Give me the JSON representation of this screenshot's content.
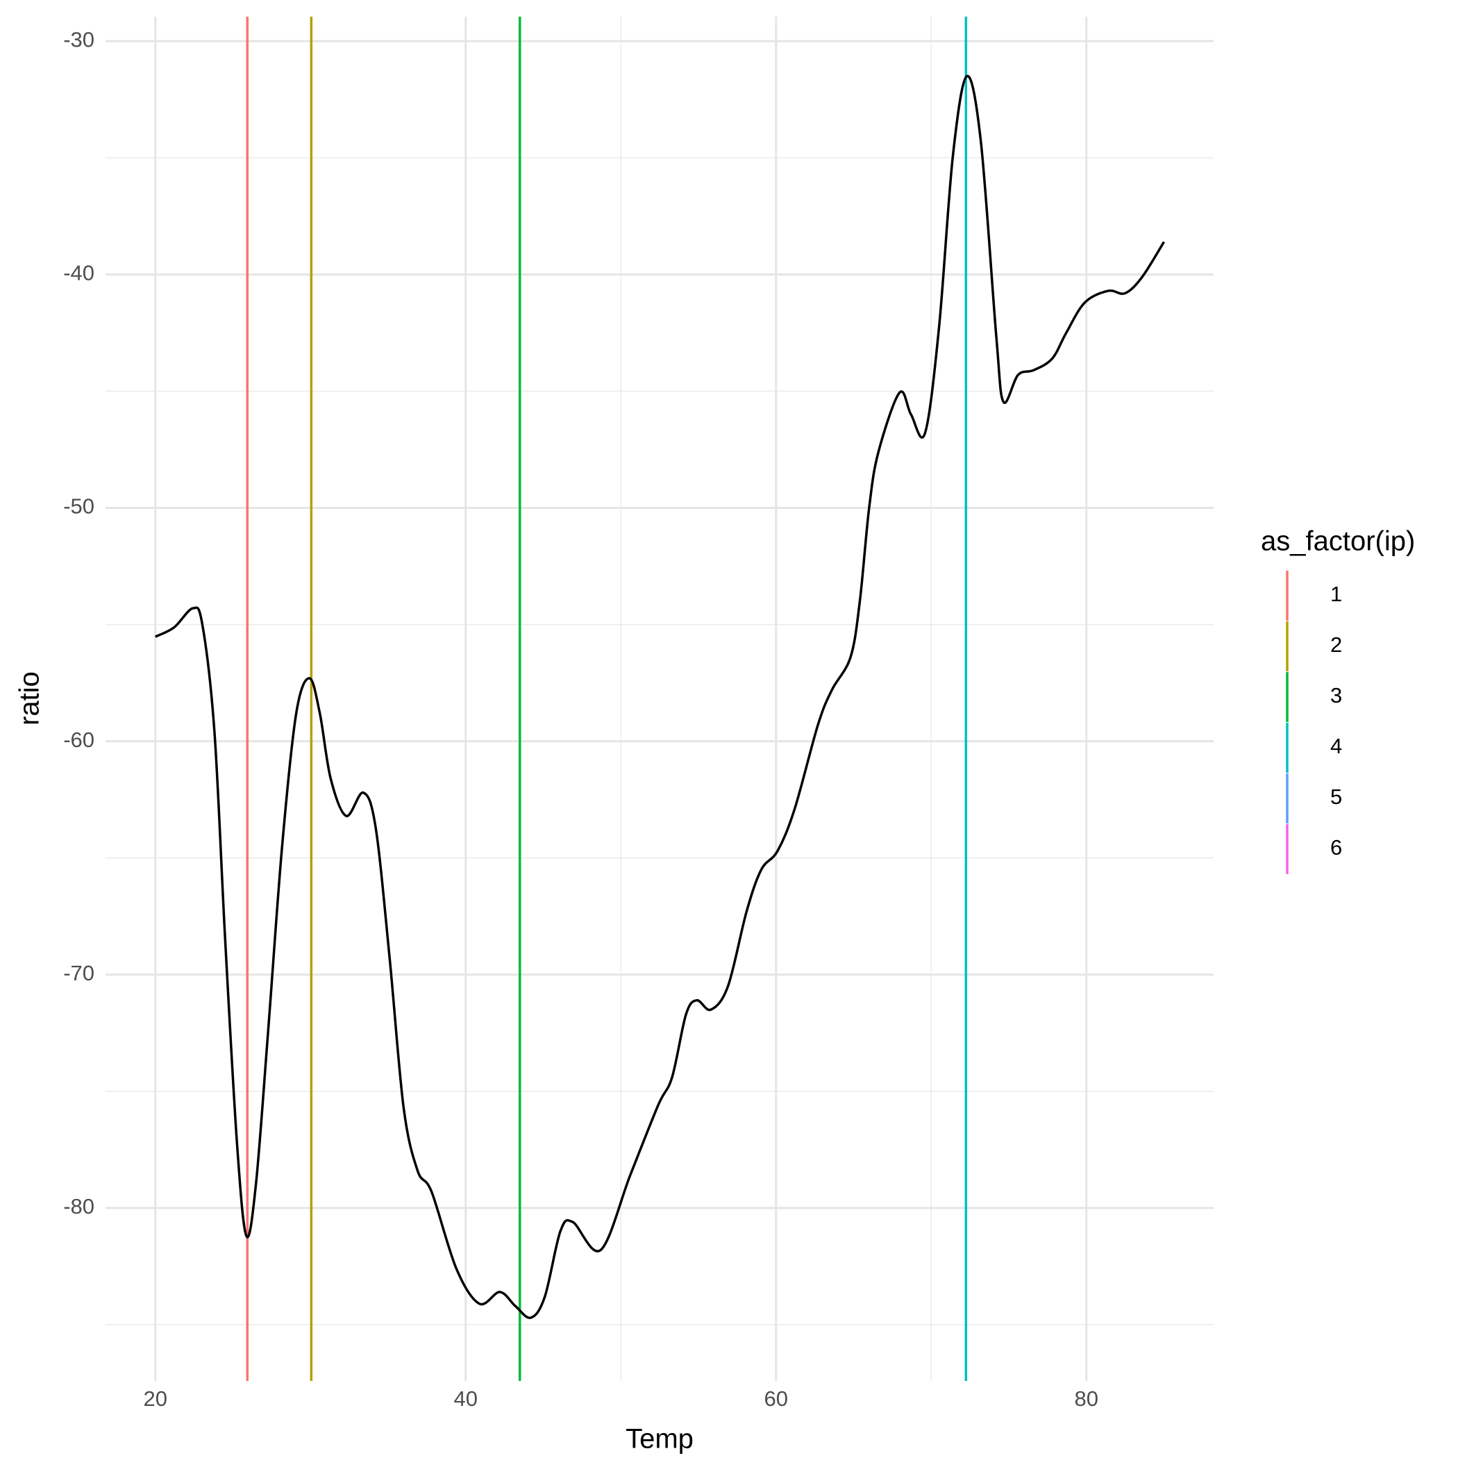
{
  "chart_data": {
    "type": "line",
    "x_label": "Temp",
    "y_label": "ratio",
    "xlim": [
      16.79,
      88.2
    ],
    "ylim": [
      -87.41,
      -28.95
    ],
    "xticks": [
      20,
      40,
      60,
      80
    ],
    "yticks": [
      -30,
      -40,
      -50,
      -60,
      -70,
      -80
    ],
    "xminorticks": [
      30,
      50,
      70
    ],
    "yminorticks": [
      -35,
      -45,
      -55,
      -65,
      -75,
      -85
    ],
    "grid": true,
    "series": [
      {
        "color": "#000000",
        "x": [
          20,
          21.21,
          22.42,
          23.03,
          23.81,
          24.5,
          25.27,
          25.87,
          26.48,
          27.26,
          28.17,
          29.08,
          29.93,
          30.6,
          31.3,
          32.3,
          33.4,
          34.2,
          35.1,
          36.0,
          36.9,
          37.8,
          39.4,
          40.88,
          42.2,
          43.2,
          44.2,
          45.1,
          46.1,
          46.9,
          48.7,
          50.6,
          52.4,
          53.3,
          54.2,
          54.9,
          55.8,
          56.9,
          58.1,
          59.05,
          60.1,
          61.2,
          62.7,
          63.6,
          64.8,
          65.4,
          66.0,
          66.6,
          67.96,
          68.7,
          69.6,
          70.5,
          71.4,
          72.3,
          73.2,
          74.2,
          74.66,
          75.6,
          76.6,
          77.8,
          78.7,
          79.9,
          81.4,
          82.5,
          83.6,
          85.0
        ],
        "values": [
          -55.52,
          -55.12,
          -54.3,
          -55.0,
          -59.6,
          -68.5,
          -77.3,
          -81.2,
          -79.0,
          -72.5,
          -64.5,
          -58.8,
          -57.3,
          -58.8,
          -61.6,
          -63.2,
          -62.2,
          -63.7,
          -69.3,
          -75.7,
          -78.4,
          -79.3,
          -82.6,
          -84.1,
          -83.6,
          -84.2,
          -84.7,
          -83.8,
          -81.0,
          -80.6,
          -81.8,
          -78.6,
          -75.6,
          -74.4,
          -71.7,
          -71.1,
          -71.5,
          -70.5,
          -67.3,
          -65.5,
          -64.7,
          -62.9,
          -59.3,
          -57.8,
          -56.4,
          -54.0,
          -50.0,
          -47.6,
          -45.06,
          -46.0,
          -46.8,
          -42.3,
          -34.9,
          -31.5,
          -34.3,
          -42.7,
          -45.46,
          -44.3,
          -44.1,
          -43.6,
          -42.5,
          -41.2,
          -40.7,
          -40.8,
          -40.1,
          -38.6
        ]
      }
    ],
    "legend_title": "as_factor(ip)",
    "legend": "right",
    "vlines": [
      {
        "name": "1",
        "color": "#F8766D",
        "x": 25.93
      },
      {
        "name": "2",
        "color": "#B79F00",
        "x": 30.05
      },
      {
        "name": "3",
        "color": "#00BA38",
        "x": 43.49
      },
      {
        "name": "4",
        "color": "#00BFC4",
        "x": 72.24
      },
      {
        "name": "5",
        "color": "#619CFF",
        "x": null
      },
      {
        "name": "6",
        "color": "#F564E3",
        "x": null
      }
    ]
  }
}
